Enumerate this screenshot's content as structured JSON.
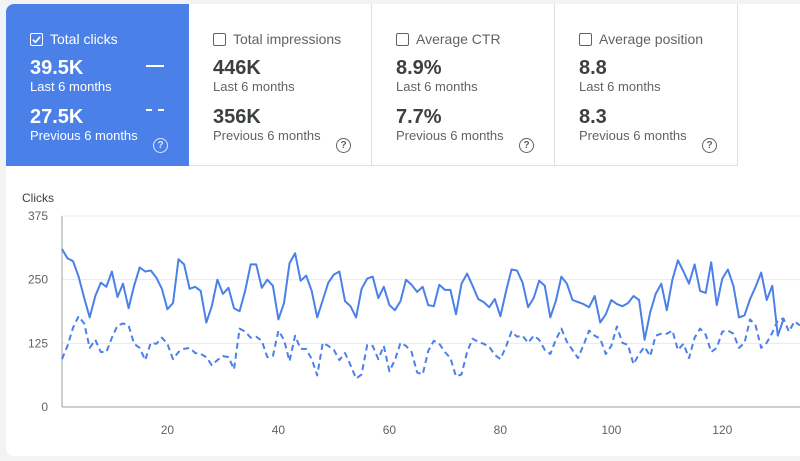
{
  "metrics": [
    {
      "title": "Total clicks",
      "current": "39.5K",
      "current_period": "Last 6 months",
      "previous": "27.5K",
      "previous_period": "Previous 6 months",
      "checked": true
    },
    {
      "title": "Total impressions",
      "current": "446K",
      "current_period": "Last 6 months",
      "previous": "356K",
      "previous_period": "Previous 6 months",
      "checked": false
    },
    {
      "title": "Average CTR",
      "current": "8.9%",
      "current_period": "Last 6 months",
      "previous": "7.7%",
      "previous_period": "Previous 6 months",
      "checked": false
    },
    {
      "title": "Average position",
      "current": "8.8",
      "current_period": "Last 6 months",
      "previous": "8.3",
      "previous_period": "Previous 6 months",
      "checked": false
    }
  ],
  "colors": {
    "accent": "#4a80e8",
    "series": "#4a80e8"
  },
  "icons": {
    "checkbox": "checkbox-icon",
    "help": "help-icon"
  },
  "chart_data": {
    "type": "line",
    "ylabel": "Clicks",
    "ylim": [
      0,
      375
    ],
    "yticks": [
      0,
      125,
      250,
      375
    ],
    "xlim": [
      1,
      134
    ],
    "xticks": [
      20,
      40,
      60,
      80,
      100,
      120
    ],
    "grid": true,
    "series": [
      {
        "name": "Last 6 months",
        "style": "solid",
        "values": [
          310,
          292,
          286,
          256,
          214,
          176,
          218,
          244,
          236,
          266,
          216,
          242,
          194,
          238,
          274,
          266,
          268,
          254,
          232,
          192,
          204,
          290,
          280,
          232,
          236,
          228,
          166,
          198,
          250,
          222,
          234,
          194,
          188,
          228,
          280,
          280,
          234,
          250,
          238,
          172,
          204,
          282,
          302,
          248,
          258,
          228,
          176,
          210,
          244,
          260,
          266,
          208,
          198,
          176,
          232,
          252,
          256,
          214,
          236,
          200,
          190,
          208,
          250,
          240,
          226,
          236,
          200,
          198,
          240,
          230,
          230,
          182,
          242,
          262,
          238,
          212,
          206,
          196,
          212,
          178,
          226,
          270,
          268,
          244,
          196,
          214,
          248,
          238,
          176,
          208,
          256,
          242,
          210,
          206,
          202,
          196,
          218,
          166,
          182,
          210,
          202,
          198,
          204,
          218,
          210,
          132,
          186,
          222,
          242,
          190,
          250,
          288,
          266,
          242,
          280,
          228,
          224,
          284,
          200,
          252,
          270,
          238,
          176,
          180,
          212,
          236,
          264,
          210,
          238,
          140,
          172
        ]
      },
      {
        "name": "Previous 6 months",
        "style": "dashed",
        "values": [
          94,
          120,
          156,
          178,
          164,
          116,
          132,
          108,
          108,
          136,
          160,
          164,
          160,
          124,
          116,
          92,
          126,
          124,
          136,
          124,
          94,
          108,
          114,
          116,
          106,
          104,
          98,
          82,
          92,
          100,
          98,
          74,
          154,
          148,
          136,
          138,
          130,
          98,
          100,
          150,
          132,
          90,
          140,
          114,
          114,
          94,
          62,
          126,
          120,
          112,
          92,
          106,
          82,
          56,
          64,
          122,
          120,
          94,
          120,
          70,
          92,
          126,
          120,
          108,
          68,
          64,
          110,
          130,
          124,
          108,
          96,
          60,
          64,
          108,
          134,
          128,
          124,
          118,
          102,
          94,
          118,
          148,
          138,
          140,
          126,
          140,
          132,
          112,
          104,
          132,
          154,
          128,
          112,
          96,
          122,
          150,
          140,
          134,
          104,
          120,
          158,
          126,
          122,
          84,
          104,
          118,
          100,
          140,
          144,
          144,
          150,
          112,
          124,
          96,
          136,
          154,
          142,
          108,
          116,
          148,
          150,
          144,
          116,
          126,
          172,
          160,
          116,
          126,
          146,
          170,
          174,
          148,
          168,
          160
        ]
      }
    ]
  }
}
